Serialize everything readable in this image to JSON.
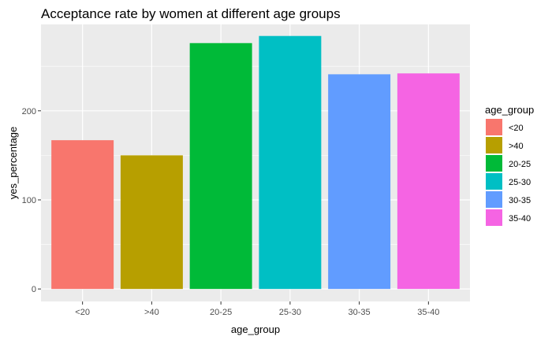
{
  "chart_data": {
    "type": "bar",
    "title": "Acceptance rate by women at different age groups",
    "xlabel": "age_group",
    "ylabel": "yes_percentage",
    "categories": [
      "<20",
      ">40",
      "20-25",
      "25-30",
      "30-35",
      "35-40"
    ],
    "values": [
      167,
      150,
      276,
      284,
      241,
      242
    ],
    "colors": [
      "#F8766D",
      "#B79F00",
      "#00BA38",
      "#00BFC4",
      "#619CFF",
      "#F564E3"
    ],
    "y_ticks": [
      0,
      100,
      200
    ],
    "ylim": [
      -14,
      297
    ],
    "grid": true,
    "panel_background": "#EBEBEB",
    "legend": {
      "title": "age_group",
      "placement": "right",
      "entries": [
        "<20",
        ">40",
        "20-25",
        "25-30",
        "30-35",
        "35-40"
      ]
    }
  }
}
